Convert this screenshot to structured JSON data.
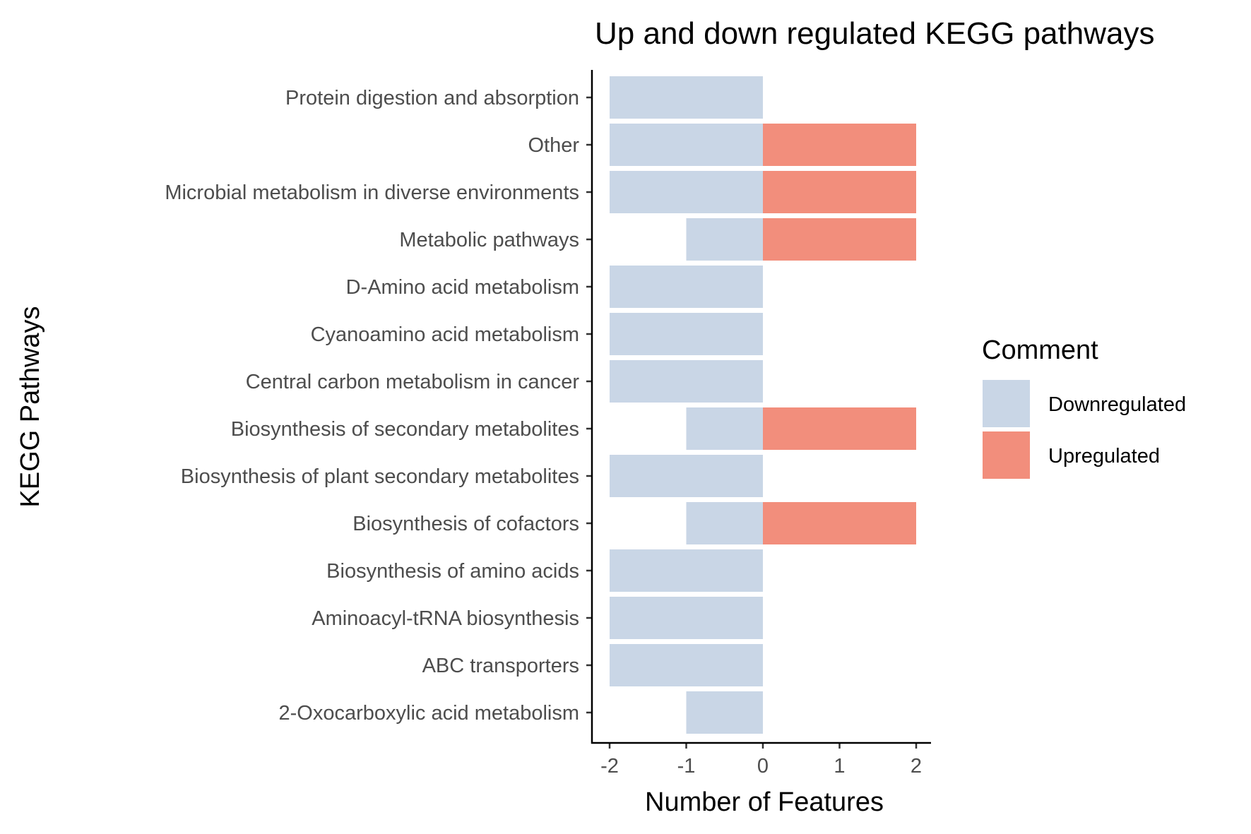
{
  "chart_data": {
    "type": "bar",
    "orientation": "horizontal",
    "stacked": true,
    "title": "Up and down regulated KEGG pathways",
    "xlabel": "Number of Features",
    "ylabel": "KEGG Pathways",
    "xlim": [
      -2,
      2
    ],
    "xticks": [
      "-2",
      "-1",
      "0",
      "1",
      "2"
    ],
    "grid": false,
    "legend": {
      "title": "Comment",
      "position": "right"
    },
    "categories": [
      "Protein digestion and absorption",
      "Other",
      "Microbial metabolism in diverse environments",
      "Metabolic pathways",
      "D-Amino acid metabolism",
      "Cyanoamino acid metabolism",
      "Central carbon metabolism in cancer",
      "Biosynthesis of secondary metabolites",
      "Biosynthesis of plant secondary metabolites",
      "Biosynthesis of cofactors",
      "Biosynthesis of amino acids",
      "Aminoacyl-tRNA biosynthesis",
      "ABC transporters",
      "2-Oxocarboxylic acid metabolism"
    ],
    "series": [
      {
        "name": "Downregulated",
        "color": "#c9d6e6",
        "values": [
          -2,
          -2,
          -2,
          -1,
          -2,
          -2,
          -2,
          -1,
          -2,
          -1,
          -2,
          -2,
          -2,
          -1
        ]
      },
      {
        "name": "Upregulated",
        "color": "#f28e7c",
        "values": [
          0,
          2,
          2,
          2,
          0,
          0,
          0,
          2,
          0,
          2,
          0,
          0,
          0,
          0
        ]
      }
    ]
  }
}
